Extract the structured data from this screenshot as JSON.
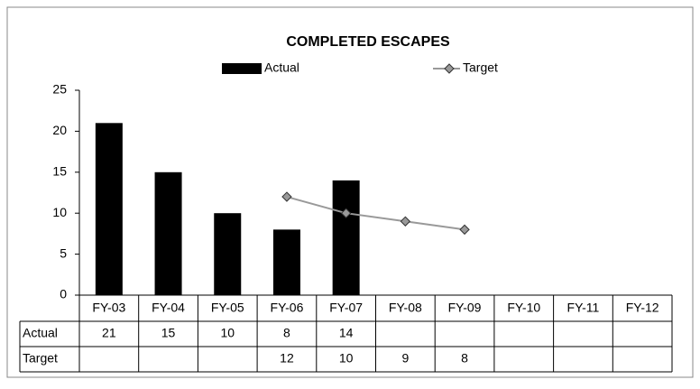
{
  "chart_data": {
    "type": "bar",
    "title": "COMPLETED ESCAPES",
    "categories": [
      "FY-03",
      "FY-04",
      "FY-05",
      "FY-06",
      "FY-07",
      "FY-08",
      "FY-09",
      "FY-10",
      "FY-11",
      "FY-12"
    ],
    "series": [
      {
        "name": "Actual",
        "type": "bar",
        "color": "#000000",
        "values": [
          21,
          15,
          10,
          8,
          14,
          null,
          null,
          null,
          null,
          null
        ]
      },
      {
        "name": "Target",
        "type": "line",
        "color": "#999999",
        "values": [
          null,
          null,
          null,
          12,
          10,
          9,
          8,
          null,
          null,
          null
        ]
      }
    ],
    "ylim": [
      0,
      25
    ],
    "yticks": [
      0,
      5,
      10,
      15,
      20,
      25
    ],
    "grid": false,
    "legend": "top"
  }
}
